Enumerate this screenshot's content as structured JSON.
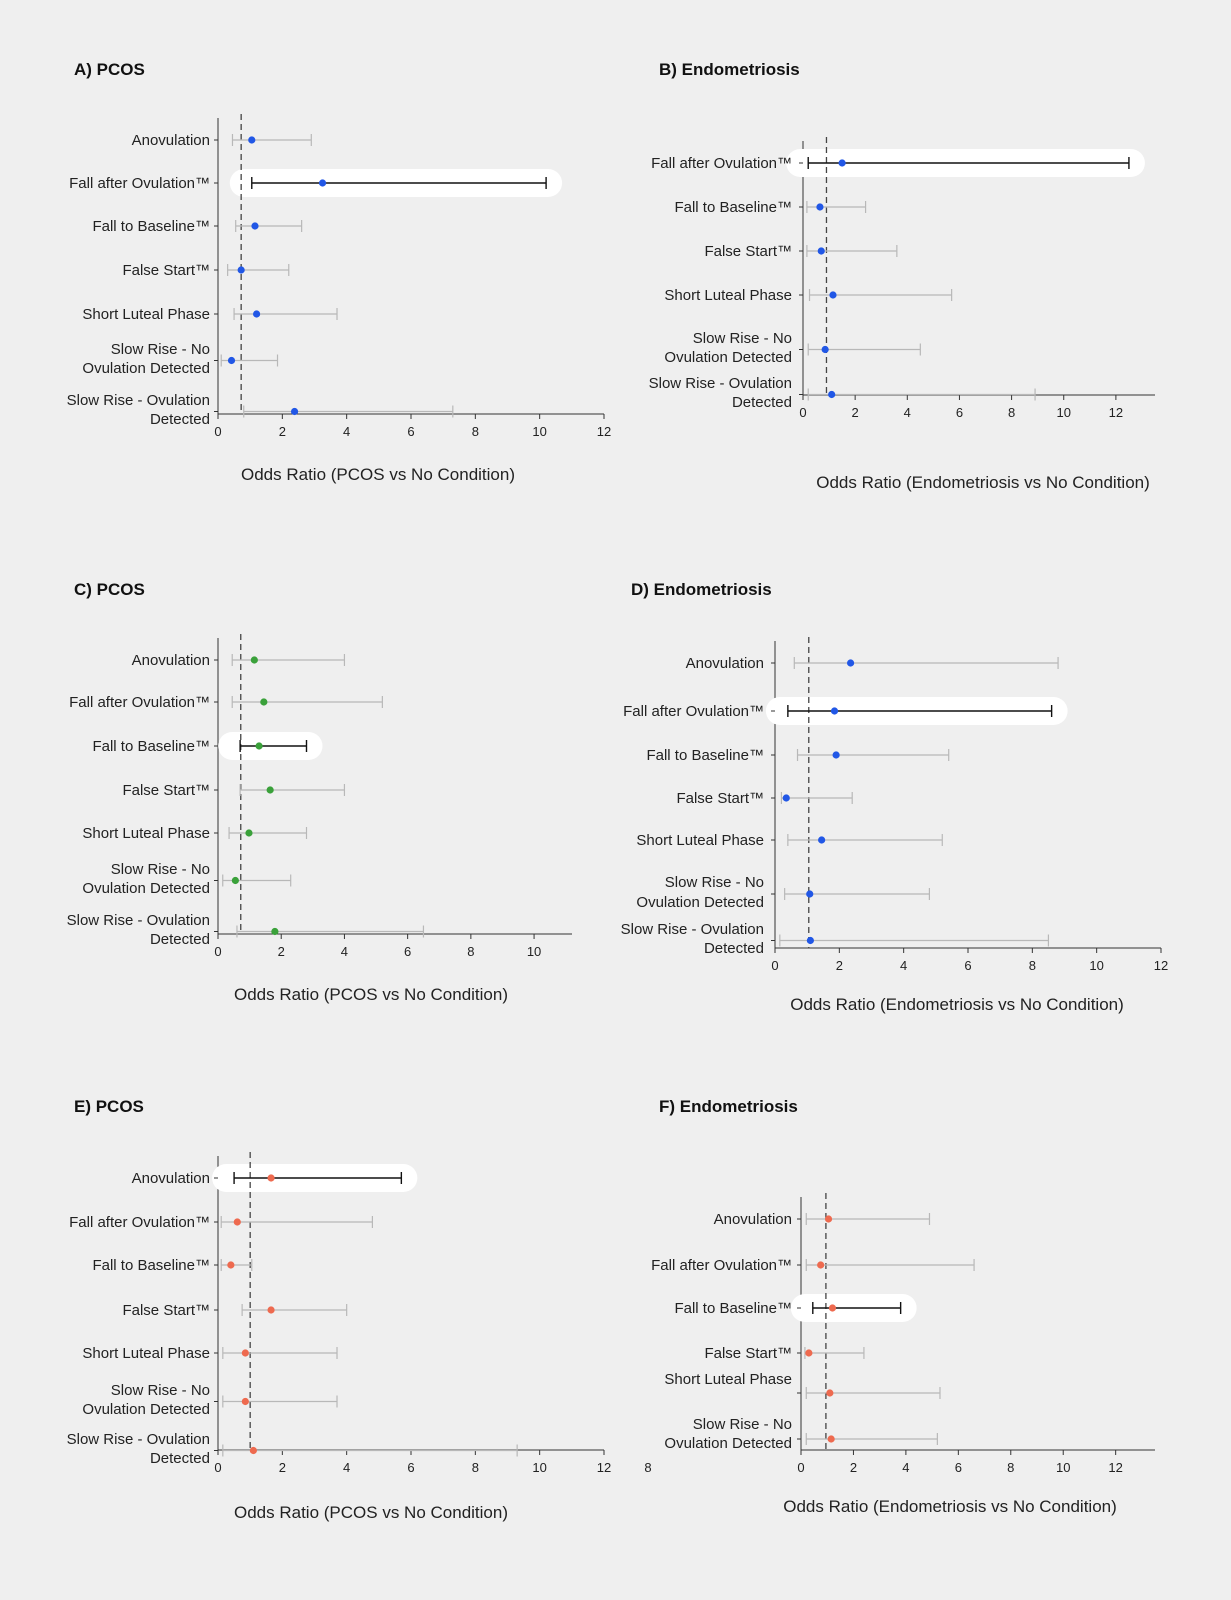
{
  "colors": {
    "blue": "#2157e6",
    "green": "#3aa13a",
    "red": "#ee6a4f",
    "ci": "#b8b8b8",
    "ci_highlight": "#111111",
    "highlight_bg": "#ffffff",
    "reference_line": "#444444"
  },
  "chart_data": [
    {
      "type": "forest",
      "title": "A) PCOS",
      "xlabel": "Odds Ratio (PCOS vs No Condition)",
      "categories": [
        "Anovulation",
        "Fall after Ovulation™",
        "Fall to Baseline™",
        "False Start™",
        "Short Luteal Phase",
        "Slow Rise - No Ovulation Detected",
        "Slow Rise - Ovulation Detected"
      ],
      "estimate": [
        1.05,
        3.25,
        1.15,
        0.72,
        1.2,
        0.42,
        2.38
      ],
      "ci_low": [
        0.45,
        1.05,
        0.55,
        0.3,
        0.5,
        0.1,
        0.8
      ],
      "ci_high": [
        2.9,
        10.2,
        2.6,
        2.2,
        3.7,
        1.85,
        7.3
      ],
      "highlight": [
        1
      ],
      "reference_line": 0.72,
      "xlim": [
        0,
        12
      ],
      "xticks": [
        0,
        2,
        4,
        6,
        8,
        10,
        12
      ],
      "color": "blue"
    },
    {
      "type": "forest",
      "title": "B) Endometriosis",
      "xlabel": "Odds Ratio (Endometriosis vs No Condition)",
      "categories": [
        "Fall after Ovulation™",
        "Fall to Baseline™",
        "False Start™",
        "Short Luteal Phase",
        "Slow Rise - No Ovulation Detected",
        "Slow Rise - Ovulation Detected"
      ],
      "estimate": [
        1.5,
        0.65,
        0.7,
        1.15,
        0.85,
        1.1
      ],
      "ci_low": [
        0.2,
        0.15,
        0.15,
        0.25,
        0.2,
        0.2
      ],
      "ci_high": [
        12.5,
        2.4,
        3.6,
        5.7,
        4.5,
        8.9
      ],
      "highlight": [
        0
      ],
      "reference_line": 0.9,
      "xlim": [
        0,
        13.5
      ],
      "xticks": [
        0,
        2,
        4,
        6,
        8,
        10,
        12
      ],
      "color": "blue"
    },
    {
      "type": "forest",
      "title": "C) PCOS",
      "xlabel": "Odds Ratio (PCOS vs No Condition)",
      "categories": [
        "Anovulation",
        "Fall after Ovulation™",
        "Fall to Baseline™",
        "False Start™",
        "Short Luteal Phase",
        "Slow Rise - No Ovulation Detected",
        "Slow Rise - Ovulation Detected"
      ],
      "estimate": [
        1.15,
        1.45,
        1.3,
        1.65,
        0.98,
        0.55,
        1.8
      ],
      "ci_low": [
        0.45,
        0.45,
        0.7,
        0.7,
        0.35,
        0.15,
        0.6
      ],
      "ci_high": [
        4.0,
        5.2,
        2.8,
        4.0,
        2.8,
        2.3,
        6.5
      ],
      "highlight": [
        2
      ],
      "reference_line": 0.72,
      "xlim": [
        0,
        11.2
      ],
      "xticks": [
        0,
        2,
        4,
        6,
        8,
        10
      ],
      "color": "green"
    },
    {
      "type": "forest",
      "title": "D) Endometriosis",
      "xlabel": "Odds Ratio (Endometriosis vs No Condition)",
      "categories": [
        "Anovulation",
        "Fall after Ovulation™",
        "Fall to Baseline™",
        "False Start™",
        "Short Luteal Phase",
        "Slow Rise - No Ovulation Detected",
        "Slow Rise - Ovulation Detected"
      ],
      "estimate": [
        2.35,
        1.85,
        1.9,
        0.35,
        1.45,
        1.08,
        1.1
      ],
      "ci_low": [
        0.6,
        0.4,
        0.7,
        0.2,
        0.4,
        0.3,
        0.15
      ],
      "ci_high": [
        8.8,
        8.6,
        5.4,
        2.4,
        5.2,
        4.8,
        8.5
      ],
      "highlight": [
        1
      ],
      "reference_line": 1.05,
      "xlim": [
        0,
        12
      ],
      "xticks": [
        0,
        2,
        4,
        6,
        8,
        10,
        12
      ],
      "color": "blue"
    },
    {
      "type": "forest",
      "title": "E) PCOS",
      "xlabel": "Odds Ratio (PCOS vs No Condition)",
      "categories": [
        "Anovulation",
        "Fall after Ovulation™",
        "Fall to Baseline™",
        "False Start™",
        "Short Luteal Phase",
        "Slow Rise - No Ovulation Detected",
        "Slow Rise - Ovulation Detected"
      ],
      "estimate": [
        1.65,
        0.6,
        0.4,
        1.65,
        0.85,
        0.85,
        1.1
      ],
      "ci_low": [
        0.5,
        0.1,
        0.1,
        0.75,
        0.15,
        0.15,
        0.15
      ],
      "ci_high": [
        5.7,
        4.8,
        1.05,
        4.0,
        3.7,
        3.7,
        9.3
      ],
      "highlight": [
        0
      ],
      "reference_line": 1.0,
      "xlim": [
        0,
        12
      ],
      "xticks": [
        0,
        2,
        4,
        6,
        8,
        10,
        12
      ],
      "color": "red"
    },
    {
      "type": "forest",
      "title": "F) Endometriosis",
      "xlabel": "Odds Ratio (Endometriosis vs No Condition)",
      "categories": [
        "Anovulation",
        "Fall after Ovulation™",
        "Fall to Baseline™",
        "False Start™",
        "Short Luteal Phase",
        "Slow Rise - No Ovulation Detected"
      ],
      "estimate": [
        1.05,
        0.75,
        1.2,
        0.3,
        1.1,
        1.15
      ],
      "ci_low": [
        0.2,
        0.2,
        0.45,
        0.15,
        0.2,
        0.2
      ],
      "ci_high": [
        4.9,
        6.6,
        3.8,
        2.4,
        5.3,
        5.2
      ],
      "highlight": [
        2
      ],
      "reference_line": 0.95,
      "xlim": [
        0,
        13.5
      ],
      "xticks": [
        0,
        2,
        4,
        6,
        8,
        10,
        12
      ],
      "extra_tick_label": "8",
      "color": "red"
    }
  ]
}
